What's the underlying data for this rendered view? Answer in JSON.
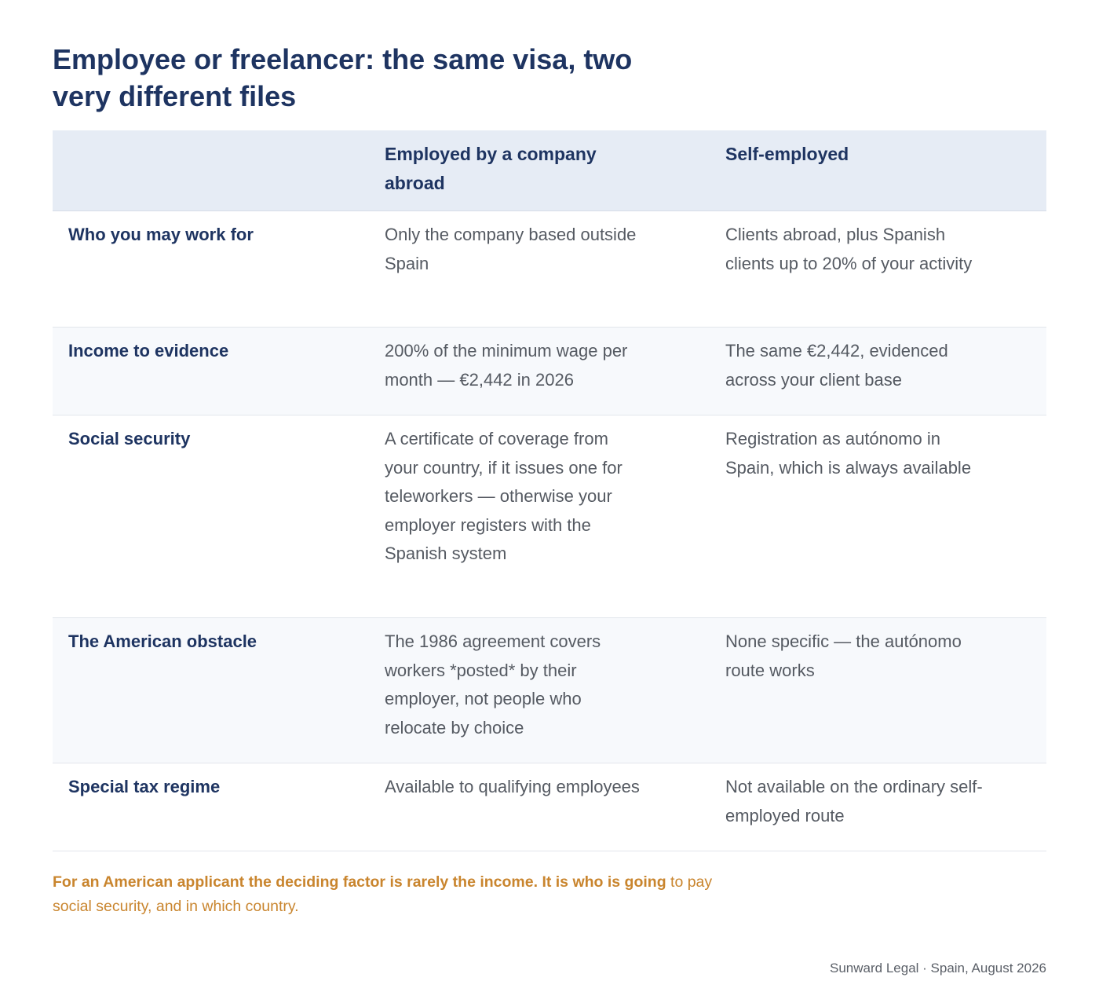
{
  "title": "Employee or freelancer: the same visa, two very different files",
  "table": {
    "headers": {
      "label": "",
      "employed": "Employed by a company abroad",
      "self": "Self-employed"
    },
    "rows": [
      {
        "label": "Who you may work for",
        "employed": "Only the company based outside Spain",
        "self": "Clients abroad, plus Spanish clients up to 20% of your activity"
      },
      {
        "label": "Income to evidence",
        "employed": "200% of the minimum wage per month — €2,442 in 2026",
        "self": "The same €2,442, evidenced across your client base"
      },
      {
        "label": "Social security",
        "employed": "A certificate of coverage from your country, if it issues one for teleworkers — otherwise your employer registers with the Spanish system",
        "self": "Registration as autónomo in Spain, which is always available"
      },
      {
        "label": "The American obstacle",
        "employed": "The 1986 agreement covers workers *posted* by their employer, not people who relocate by choice",
        "self": "None specific — the autónomo route works"
      },
      {
        "label": "Special tax regime",
        "employed": "Available to qualifying employees",
        "self": "Not available on the ordinary self-employed route"
      }
    ]
  },
  "conclusion": {
    "strong": "For an American applicant the deciding factor is rarely the income. It is who is going",
    "rest": " to pay social security, and in which country."
  },
  "footer": "Sunward Legal · Spain, August 2026",
  "colors": {
    "navy": "#1e3461",
    "accent": "#c9852e",
    "header_bg": "#e6ecf5",
    "alt_row_bg": "#f7f9fc"
  }
}
